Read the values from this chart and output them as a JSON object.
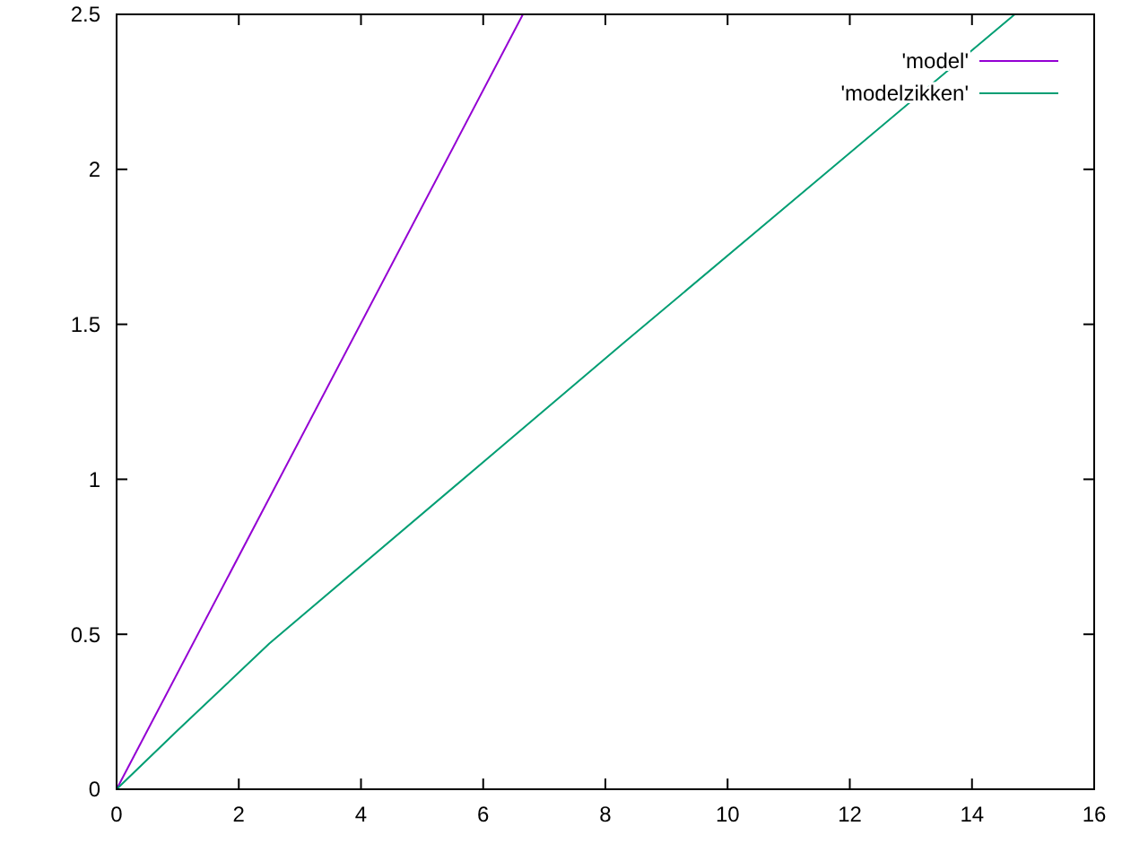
{
  "chart_data": {
    "type": "line",
    "xlim": [
      0,
      16
    ],
    "ylim": [
      0,
      2.5
    ],
    "xticks": [
      0,
      2,
      4,
      6,
      8,
      10,
      12,
      14,
      16
    ],
    "yticks": [
      0,
      0.5,
      1,
      1.5,
      2,
      2.5
    ],
    "legend": "top right",
    "grid": false,
    "series": [
      {
        "name": "'model'",
        "color": "#9400d3",
        "x": [
          0,
          6.65
        ],
        "values": [
          0,
          2.5
        ]
      },
      {
        "name": "'modelzikken'",
        "color": "#009e73",
        "x": [
          0,
          1,
          2.5,
          8.3,
          14.7
        ],
        "values": [
          0,
          0.19,
          0.47,
          1.44,
          2.5
        ]
      }
    ]
  }
}
